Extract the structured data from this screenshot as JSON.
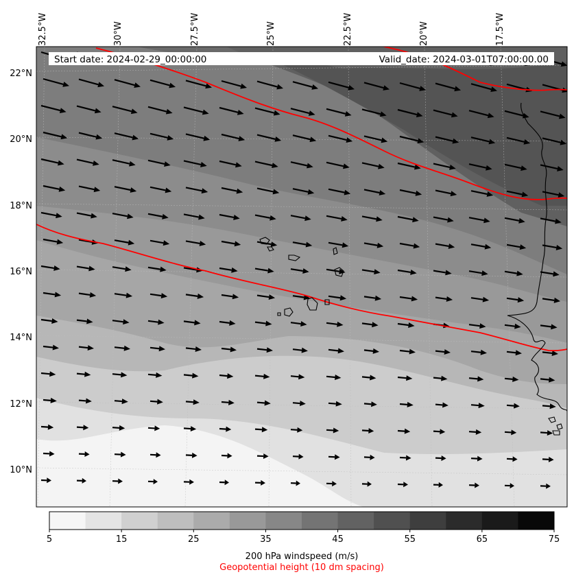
{
  "header": {
    "start_date": "Start date: 2024-02-29_00:00:00",
    "valid_date": "Valid_date: 2024-03-01T07:00:00.00"
  },
  "map": {
    "lon_labels": [
      "32.5°W",
      "30°W",
      "27.5°W",
      "25°W",
      "22.5°W",
      "20°W",
      "17.5°W"
    ],
    "lat_labels": [
      "22°N",
      "20°N",
      "18°N",
      "16°N",
      "14°N",
      "12°N",
      "10°N"
    ],
    "field": "200 hPa windspeed",
    "contour_field": "Geopotential height"
  },
  "colorbar": {
    "ticks": [
      "5",
      "15",
      "25",
      "35",
      "45",
      "55",
      "65",
      "75"
    ],
    "levels": [
      5,
      10,
      15,
      20,
      25,
      30,
      35,
      40,
      45,
      50,
      55,
      60,
      65,
      70,
      75
    ],
    "colors": [
      "#f6f6f6",
      "#e4e4e4",
      "#d0d0d0",
      "#bebebe",
      "#ababab",
      "#999999",
      "#878787",
      "#747474",
      "#626262",
      "#505050",
      "#3e3e3e",
      "#2b2b2b",
      "#1a1a1a",
      "#080808"
    ],
    "label": "200 hPa windspeed (m/s)",
    "contour_label": "Geopotential height (10 dm spacing)",
    "contour_color": "#ff0000"
  }
}
